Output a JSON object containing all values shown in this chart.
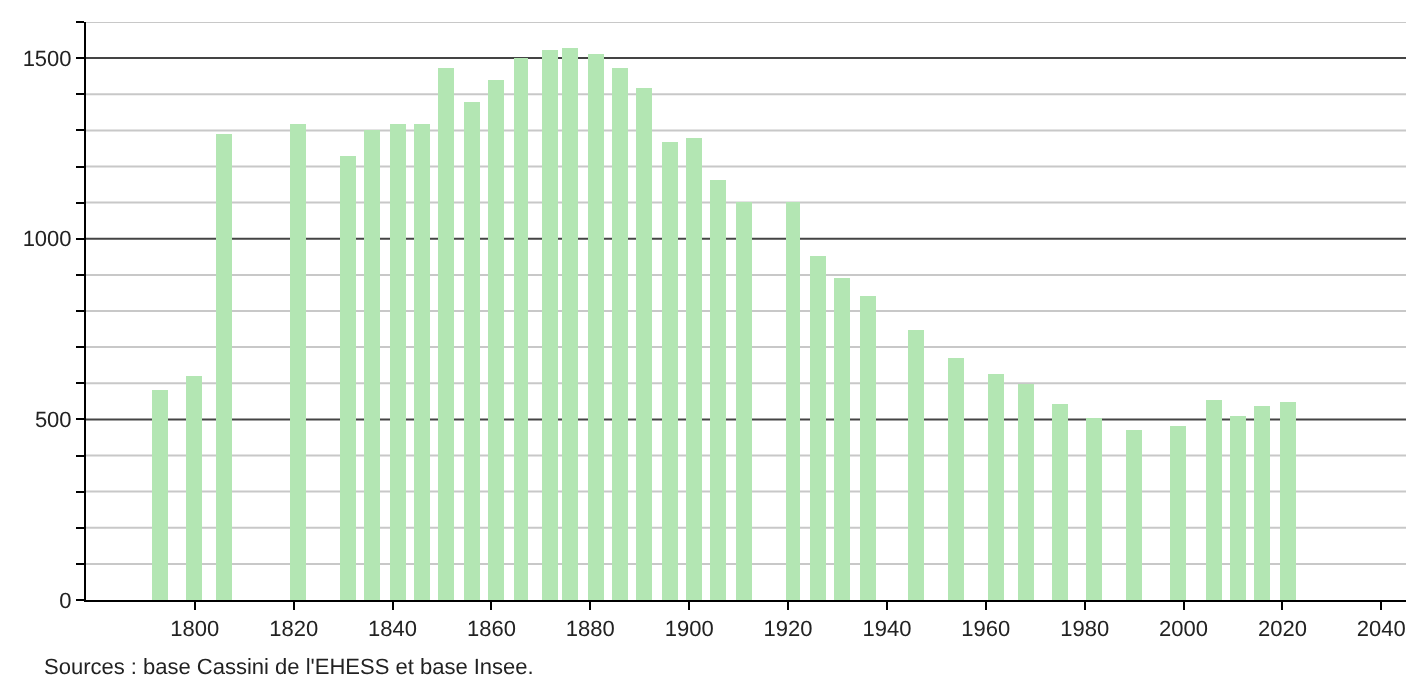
{
  "chart_data": {
    "type": "bar",
    "x": [
      1793,
      1800,
      1806,
      1821,
      1831,
      1836,
      1841,
      1846,
      1851,
      1856,
      1861,
      1866,
      1872,
      1876,
      1881,
      1886,
      1891,
      1896,
      1901,
      1906,
      1911,
      1921,
      1926,
      1931,
      1936,
      1946,
      1954,
      1962,
      1968,
      1975,
      1982,
      1990,
      1999,
      2006,
      2011,
      2016,
      2021
    ],
    "values": [
      580,
      620,
      1290,
      1320,
      1230,
      1300,
      1320,
      1320,
      1470,
      1380,
      1440,
      1500,
      1520,
      1530,
      1510,
      1475,
      1420,
      1270,
      1280,
      1165,
      1100,
      1100,
      955,
      890,
      840,
      750,
      670,
      625,
      600,
      545,
      505,
      470,
      480,
      555,
      510,
      535,
      550
    ],
    "color": "#b3e6b3",
    "xlim": [
      1778,
      2045
    ],
    "xticks": [
      1800,
      1820,
      1840,
      1860,
      1880,
      1900,
      1920,
      1940,
      1960,
      1980,
      2000,
      2020,
      2040
    ],
    "ylim": [
      0,
      1600
    ],
    "yticks": [
      0,
      {
        "value": 100,
        "label": null
      },
      {
        "value": 200,
        "label": null
      },
      {
        "value": 300,
        "label": null
      },
      {
        "value": 400,
        "label": null
      },
      500,
      {
        "value": 600,
        "label": null
      },
      {
        "value": 700,
        "label": null
      },
      {
        "value": 800,
        "label": null
      },
      {
        "value": 900,
        "label": null
      },
      1000,
      {
        "value": 1100,
        "label": null
      },
      {
        "value": 1200,
        "label": null
      },
      {
        "value": 1300,
        "label": null
      },
      {
        "value": 1400,
        "label": null
      },
      1500,
      {
        "value": 1600,
        "label": null
      }
    ],
    "grid": "y",
    "annotations": [
      "Sources : base Cassini de l'EHESS et base Insee."
    ]
  }
}
